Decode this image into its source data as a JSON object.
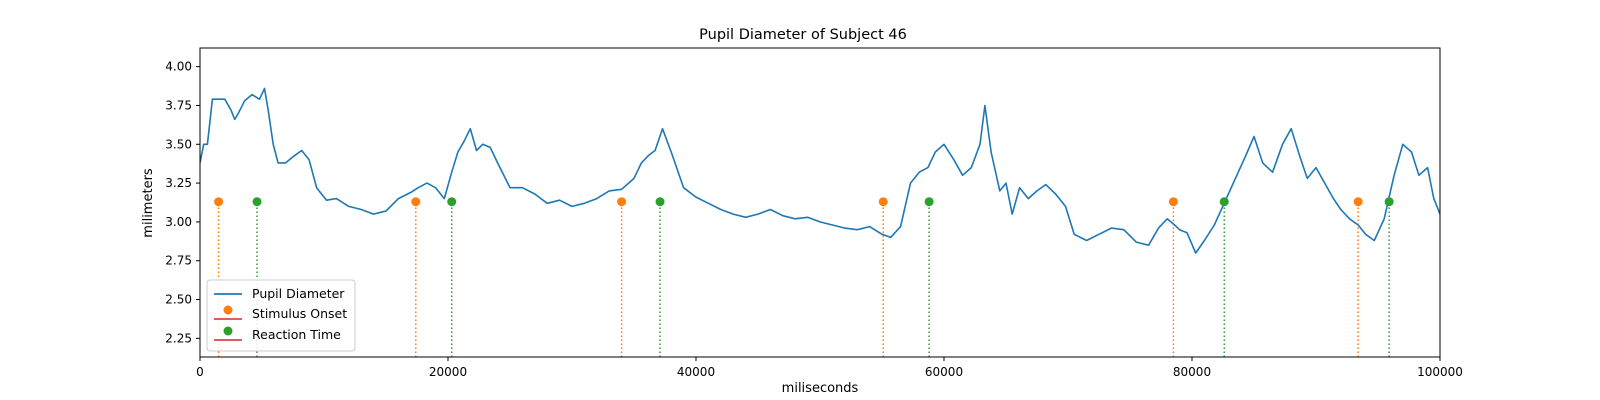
{
  "chart_data": {
    "type": "line",
    "title": "Pupil Diameter of Subject 46",
    "xlabel": "miliseconds",
    "ylabel": "milimeters",
    "xlim": [
      0,
      100000
    ],
    "ylim": [
      2.13,
      4.12
    ],
    "xticks": [
      0,
      20000,
      40000,
      60000,
      80000,
      100000
    ],
    "yticks": [
      2.25,
      2.5,
      2.75,
      3.0,
      3.25,
      3.5,
      3.75,
      4.0
    ],
    "legend_position": "lower-left",
    "grid": false,
    "colors": {
      "pupil": "#1f77b4",
      "stimulus": "#ff7f0e",
      "reaction": "#2ca02c",
      "stem_base": "#d62728"
    },
    "legend": [
      "Pupil Diameter",
      "Stimulus Onset",
      "Reaction Time"
    ],
    "series": [
      {
        "name": "Pupil Diameter",
        "style": "line",
        "x": [
          0,
          300,
          600,
          1000,
          1500,
          2000,
          2500,
          2800,
          3100,
          3600,
          4200,
          4800,
          5200,
          5500,
          5900,
          6300,
          6900,
          7500,
          8200,
          8800,
          9400,
          10200,
          11000,
          12000,
          13000,
          14000,
          15000,
          16000,
          17000,
          17600,
          18300,
          19000,
          19700,
          20300,
          20800,
          21300,
          21800,
          22300,
          22800,
          23400,
          24000,
          25000,
          26000,
          27000,
          28000,
          29000,
          30000,
          31000,
          32000,
          33000,
          34000,
          35000,
          35600,
          36200,
          36700,
          37300,
          38000,
          39000,
          40000,
          41000,
          42000,
          43000,
          44000,
          45000,
          46000,
          47000,
          48000,
          49000,
          50000,
          51000,
          52000,
          53000,
          54000,
          55000,
          55700,
          56500,
          57300,
          58000,
          58700,
          59300,
          60000,
          60800,
          61500,
          62200,
          62900,
          63300,
          63800,
          64500,
          65000,
          65500,
          66100,
          66800,
          67500,
          68200,
          69000,
          69800,
          70500,
          71500,
          72500,
          73500,
          74500,
          75500,
          76500,
          77300,
          78000,
          78600,
          79000,
          79600,
          80300,
          81000,
          81800,
          82600,
          83500,
          84300,
          85000,
          85700,
          86500,
          87300,
          88000,
          88700,
          89300,
          90000,
          90700,
          91400,
          92000,
          92700,
          93400,
          94000,
          94700,
          95500,
          96300,
          97000,
          97700,
          98300,
          99000,
          99500,
          100000
        ],
        "y": [
          3.38,
          3.5,
          3.5,
          3.79,
          3.79,
          3.79,
          3.72,
          3.66,
          3.7,
          3.78,
          3.82,
          3.79,
          3.86,
          3.72,
          3.5,
          3.38,
          3.38,
          3.42,
          3.46,
          3.4,
          3.22,
          3.14,
          3.15,
          3.1,
          3.08,
          3.05,
          3.07,
          3.15,
          3.19,
          3.22,
          3.25,
          3.22,
          3.15,
          3.32,
          3.45,
          3.52,
          3.6,
          3.46,
          3.5,
          3.48,
          3.38,
          3.22,
          3.22,
          3.18,
          3.12,
          3.14,
          3.1,
          3.12,
          3.15,
          3.2,
          3.21,
          3.28,
          3.38,
          3.43,
          3.46,
          3.6,
          3.45,
          3.22,
          3.16,
          3.12,
          3.08,
          3.05,
          3.03,
          3.05,
          3.08,
          3.04,
          3.02,
          3.03,
          3.0,
          2.98,
          2.96,
          2.95,
          2.97,
          2.92,
          2.9,
          2.97,
          3.25,
          3.32,
          3.35,
          3.45,
          3.5,
          3.4,
          3.3,
          3.35,
          3.5,
          3.75,
          3.45,
          3.2,
          3.25,
          3.05,
          3.22,
          3.15,
          3.2,
          3.24,
          3.18,
          3.1,
          2.92,
          2.88,
          2.92,
          2.96,
          2.95,
          2.87,
          2.85,
          2.96,
          3.02,
          2.98,
          2.95,
          2.93,
          2.8,
          2.88,
          2.98,
          3.12,
          3.28,
          3.42,
          3.55,
          3.38,
          3.32,
          3.5,
          3.6,
          3.42,
          3.28,
          3.35,
          3.25,
          3.15,
          3.08,
          3.02,
          2.98,
          2.92,
          2.88,
          3.02,
          3.3,
          3.5,
          3.45,
          3.3,
          3.35,
          3.15,
          3.05
        ]
      },
      {
        "name": "Stimulus Onset",
        "style": "stem",
        "x": [
          1500,
          17400,
          34000,
          55100,
          78500,
          93400
        ],
        "y": [
          3.13,
          3.13,
          3.13,
          3.13,
          3.13,
          3.13
        ]
      },
      {
        "name": "Reaction Time",
        "style": "stem",
        "x": [
          4600,
          20300,
          37100,
          58800,
          82600,
          95900
        ],
        "y": [
          3.13,
          3.13,
          3.13,
          3.13,
          3.13,
          3.13
        ]
      }
    ]
  }
}
